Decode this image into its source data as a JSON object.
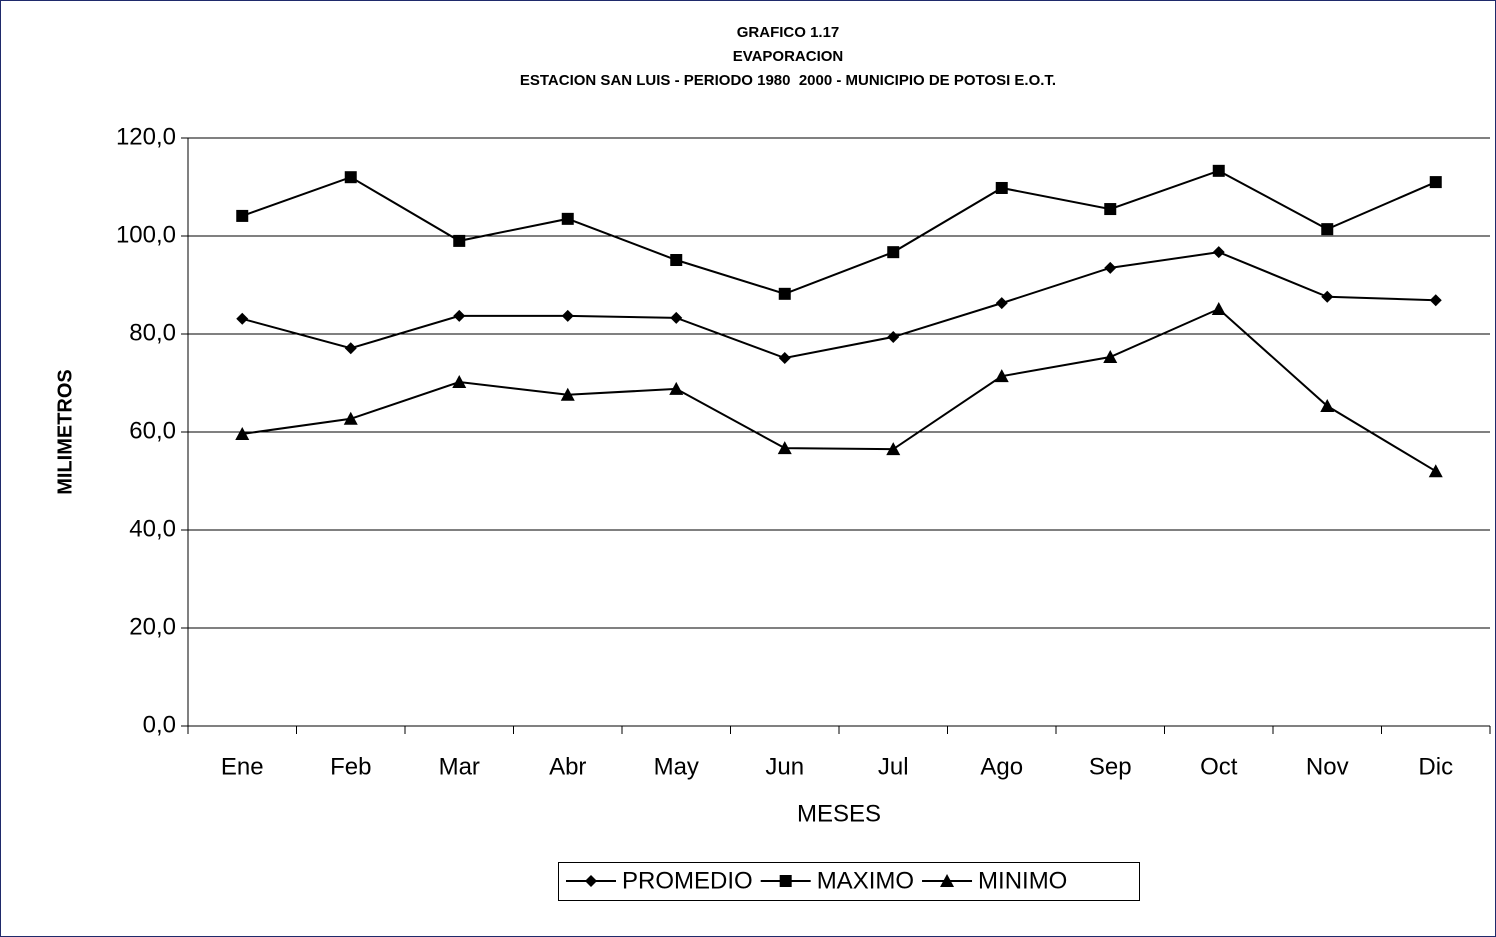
{
  "chart_data": {
    "type": "line",
    "title_lines": [
      "GRAFICO 1.17",
      "EVAPORACION",
      "ESTACION SAN LUIS - PERIODO 1980  2000 - MUNICIPIO DE POTOSI E.O.T."
    ],
    "x_label": "MESES",
    "y_label": "MILIMETROS",
    "categories": [
      "Ene",
      "Feb",
      "Mar",
      "Abr",
      "May",
      "Jun",
      "Jul",
      "Ago",
      "Sep",
      "Oct",
      "Nov",
      "Dic"
    ],
    "series": [
      {
        "name": "PROMEDIO",
        "color": "#000000",
        "marker": "diamond",
        "values": [
          83.1,
          77.1,
          83.7,
          83.7,
          83.3,
          75.1,
          79.4,
          86.3,
          93.5,
          96.7,
          87.6,
          86.9
        ]
      },
      {
        "name": "MAXIMO",
        "color": "#000000",
        "marker": "square",
        "values": [
          104.1,
          112.0,
          99.0,
          103.5,
          95.1,
          88.2,
          96.7,
          109.8,
          105.5,
          113.3,
          101.4,
          111.0
        ]
      },
      {
        "name": "MINIMO",
        "color": "#000000",
        "marker": "triangle",
        "values": [
          59.6,
          62.7,
          70.2,
          67.6,
          68.8,
          56.7,
          56.5,
          71.4,
          75.3,
          85.1,
          65.3,
          52.0
        ]
      }
    ],
    "ylim": [
      0,
      120
    ],
    "yticks": [
      {
        "value": 0,
        "label": "0,0"
      },
      {
        "value": 20,
        "label": "20,0"
      },
      {
        "value": 40,
        "label": "40,0"
      },
      {
        "value": 60,
        "label": "60,0"
      },
      {
        "value": 80,
        "label": "80,0"
      },
      {
        "value": 100,
        "label": "100,0"
      },
      {
        "value": 120,
        "label": "120,0"
      }
    ],
    "grid": true,
    "legend": "bottom"
  }
}
